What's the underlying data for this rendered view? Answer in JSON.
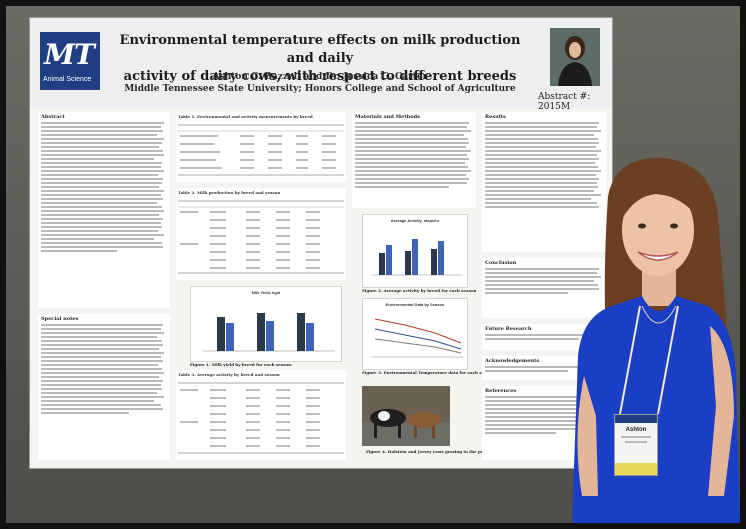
{
  "poster": {
    "title_line1": "Environmental temperature effects on milk production and daily",
    "title_line2": "activity of dairy cows, with respect to different breeds",
    "authors": "Ashton C. Bazzell and Dr. Jessica G. Carter",
    "affiliation": "Middle Tennessee State University; Honors College and School of Agriculture",
    "abstract_number": "Abstract #: 2015M",
    "logo_text": "MT",
    "logo_sub": "Animal Science",
    "sections": {
      "abstract": "Abstract",
      "special_notes": "Special notes",
      "materials": "Materials and Methods",
      "results": "Results",
      "conclusion": "Conclusion",
      "future": "Future Research",
      "acknowledgements": "Acknowledgements",
      "references": "References"
    },
    "table1_title": "Table 1. Environmental and activity measurements by breed",
    "table2_title": "Table 2. Milk production by breed and season",
    "table3_title": "Table 3. Average activity by breed and season",
    "fig1_caption": "Figure 1. Milk yield by breed for each season.",
    "fig2_caption": "Figure 2. Average activity by breed for each season",
    "fig3_caption": "Figure 3. Environmental Temperature data for each season.",
    "fig4_caption": "Figure 4. Holstein and Jersey cows grazing in the pasture",
    "milk_chart_title": "Milk Yield, kg/d",
    "activity_chart_title": "Average Activity, steps/hr",
    "temp_chart_title": "Environmental Data by Season"
  },
  "badge": {
    "name": "Ashton"
  }
}
